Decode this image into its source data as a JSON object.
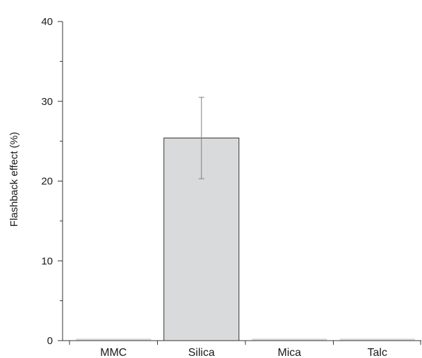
{
  "chart_data": {
    "type": "bar",
    "title": "",
    "xlabel": "",
    "ylabel": "Flashback effect (%)",
    "categories": [
      "MMC",
      "Silica",
      "Mica",
      "Talc"
    ],
    "values": [
      0,
      25.4,
      0,
      0
    ],
    "error_low": [
      0,
      20.3,
      0,
      0
    ],
    "error_high": [
      0,
      30.5,
      0,
      0
    ],
    "ylim": [
      0,
      40
    ],
    "major_ticks": [
      0,
      10,
      20,
      30,
      40
    ],
    "minor_ticks": [
      5,
      15,
      25,
      35
    ],
    "grid": false,
    "legend": "none",
    "bar_color": "#d9dadb",
    "bar_edge_color": "#333333",
    "axis_color": "#333333",
    "error_bar_color": "#7f7f7f"
  }
}
